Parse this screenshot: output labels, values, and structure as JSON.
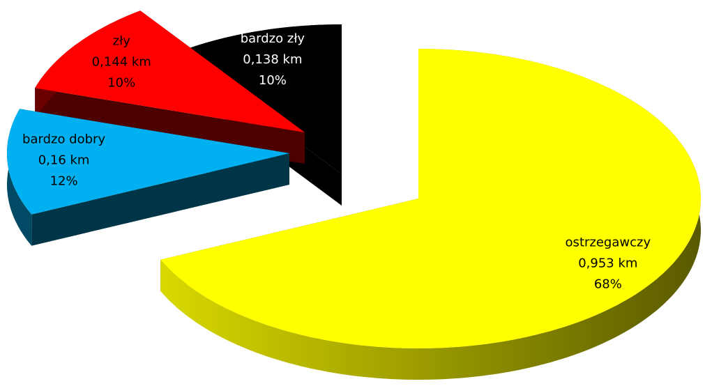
{
  "chart_data": {
    "type": "pie",
    "categories": [
      "ostrzegawczy",
      "bardzo dobry",
      "zły",
      "bardzo zły"
    ],
    "values": [
      0.953,
      0.16,
      0.144,
      0.138
    ],
    "value_labels": [
      "0,953 km",
      "0,16 km",
      "0,144 km",
      "0,138 km"
    ],
    "percent_labels": [
      "68%",
      "12%",
      "10%",
      "10%"
    ],
    "colors": [
      "#ffff00",
      "#00b0f0",
      "#ff0000",
      "#000000"
    ],
    "three_d": true,
    "exploded": true
  }
}
